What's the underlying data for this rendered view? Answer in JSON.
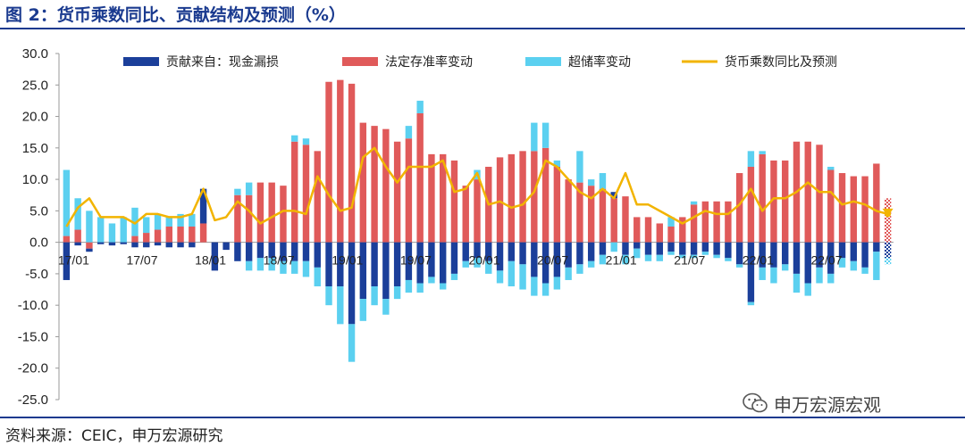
{
  "figure": {
    "title": "图 2：货币乘数同比、贡献结构及预测（%）",
    "source": "资料来源：CEIC，申万宏源研究",
    "watermark": "申万宏源宏观"
  },
  "colors": {
    "leakage": "#1b3f9a",
    "rrr": "#e05a5a",
    "excess": "#5bd0f0",
    "multiplier": "#f2b400",
    "rule": "#1a3a8f"
  },
  "chart_data": {
    "type": "bar",
    "stacked": true,
    "ylim": [
      -25,
      30
    ],
    "yticks": [
      "30.0",
      "25.0",
      "20.0",
      "15.0",
      "10.0",
      "5.0",
      "0.0",
      "-5.0",
      "-10.0",
      "-15.0",
      "-20.0",
      "-25.0"
    ],
    "ytick_values": [
      30,
      25,
      20,
      15,
      10,
      5,
      0,
      -5,
      -10,
      -15,
      -20,
      -25
    ],
    "xticks": [
      {
        "label": "17/01",
        "index": 0
      },
      {
        "label": "17/07",
        "index": 6
      },
      {
        "label": "18/01",
        "index": 12
      },
      {
        "label": "18/07",
        "index": 18
      },
      {
        "label": "19/01",
        "index": 24
      },
      {
        "label": "19/07",
        "index": 30
      },
      {
        "label": "20/01",
        "index": 36
      },
      {
        "label": "20/07",
        "index": 42
      },
      {
        "label": "21/01",
        "index": 48
      },
      {
        "label": "21/07",
        "index": 54
      },
      {
        "label": "22/01",
        "index": 60
      },
      {
        "label": "22/07",
        "index": 66
      }
    ],
    "forecast_start_index": 72,
    "legend_position": "top",
    "series": [
      {
        "name": "贡献来自：现金漏损",
        "kind": "bar",
        "values": [
          -6,
          -0.5,
          -0.5,
          -0.3,
          -0.5,
          -0.3,
          -0.8,
          -0.8,
          -0.5,
          -0.8,
          -0.8,
          -0.8,
          5.5,
          -4.5,
          -1.2,
          -3,
          -3,
          -2.5,
          -2.5,
          -3,
          -3,
          -3,
          -4,
          -7,
          -7,
          -13,
          -9,
          -7,
          -9,
          -7,
          -6,
          -6.5,
          -5.5,
          -6.5,
          -5,
          -3,
          -2.5,
          -3,
          -4.5,
          -3,
          -3.5,
          -5.5,
          -6.5,
          -5.5,
          -4,
          -3.5,
          -3,
          -2,
          1,
          -2,
          -1,
          -2,
          -2,
          -1.5,
          -2,
          -2,
          -1.5,
          -2,
          -2.5,
          -3.5,
          -9.5,
          -4,
          -4,
          -3.5,
          -5,
          -6.5,
          -4,
          -5,
          -2.5,
          -3,
          -4,
          -1.5,
          -2.5
        ]
      },
      {
        "name": "法定存准率变动",
        "kind": "bar",
        "values": [
          1,
          2,
          -1,
          0,
          0,
          0,
          1,
          1.5,
          2,
          2.5,
          2.5,
          2.5,
          3,
          0,
          0,
          7.5,
          7.5,
          9.5,
          9.5,
          9,
          16,
          15.5,
          14.5,
          25.5,
          25.8,
          25.2,
          19,
          18.5,
          18,
          16,
          16.5,
          20.5,
          14,
          14,
          13,
          9,
          10,
          12,
          13.5,
          14,
          14.5,
          14.5,
          15,
          12,
          10,
          9.5,
          9,
          8.5,
          7,
          7.3,
          4,
          4,
          3,
          2.5,
          4,
          6,
          6.5,
          6.5,
          6.5,
          11,
          12,
          14,
          13,
          13,
          16,
          16,
          15.5,
          11.5,
          11,
          10.5,
          10.5,
          12.5,
          7
        ]
      },
      {
        "name": "超储率变动",
        "kind": "bar",
        "values": [
          10.5,
          5,
          5,
          4,
          3,
          4,
          4.5,
          2.5,
          2.5,
          1.5,
          2,
          2,
          0,
          0,
          0,
          1,
          2,
          0,
          0,
          0,
          1,
          1,
          0,
          0,
          0,
          0,
          0,
          0,
          0,
          0,
          2,
          2,
          0,
          0,
          0,
          0,
          1.5,
          0,
          0,
          0,
          0,
          4.5,
          4,
          1,
          0,
          5,
          1,
          2.5,
          0,
          0,
          0,
          0,
          0,
          1.5,
          0,
          0.5,
          0,
          0,
          0,
          0,
          2.5,
          0.5,
          0,
          0,
          0,
          0,
          0,
          0.5,
          0,
          0,
          0,
          0,
          0
        ]
      },
      {
        "name": "超储率变动-负",
        "kind": "bar-neg",
        "values": [
          0,
          0,
          0,
          0,
          0,
          0,
          0,
          0,
          0,
          0,
          0,
          0,
          0,
          0,
          0,
          0,
          -1.5,
          -2,
          -2,
          -2,
          -2,
          -2.5,
          -3,
          -3,
          -6,
          -6,
          -3.5,
          -3,
          -2.5,
          -2,
          -2,
          -1.5,
          -1,
          -1,
          -1,
          -1,
          -1.5,
          -2,
          -2,
          -4,
          -4,
          -3,
          -2,
          -2,
          -2,
          -1.5,
          -1,
          -1.5,
          -1.5,
          -1.5,
          -1.5,
          -1,
          -1,
          -0.5,
          -0.5,
          -0.5,
          -0.5,
          -0.5,
          -0.5,
          -0.5,
          -0.5,
          -2,
          -2.5,
          -1,
          -3,
          -2,
          -2.5,
          -1.5,
          -1.5,
          -1.5,
          -1,
          -4.5,
          -1
        ]
      },
      {
        "name": "货币乘数同比及预测",
        "kind": "line",
        "values": [
          2.5,
          5.5,
          7,
          4,
          4,
          4,
          3,
          4.5,
          4.5,
          4,
          4,
          4.5,
          8.5,
          3.5,
          4,
          6.5,
          5,
          3,
          4,
          5,
          5,
          4.5,
          10.5,
          7.5,
          5,
          5.5,
          13.5,
          15,
          12,
          9.5,
          12,
          12,
          12,
          13,
          8,
          8.5,
          11,
          6,
          6.5,
          5.5,
          6,
          8,
          13,
          12,
          10,
          8,
          7,
          8.5,
          7,
          11,
          6,
          6,
          5,
          4,
          3,
          4,
          5,
          4.5,
          4.5,
          6,
          8.5,
          5,
          7,
          7,
          8,
          9.5,
          8,
          8,
          6,
          6.5,
          6,
          5,
          4.5
        ]
      }
    ]
  },
  "legend": {
    "leakage": "贡献来自：现金漏损",
    "rrr": "法定存准率变动",
    "excess": "超储率变动",
    "line": "货币乘数同比及预测"
  }
}
